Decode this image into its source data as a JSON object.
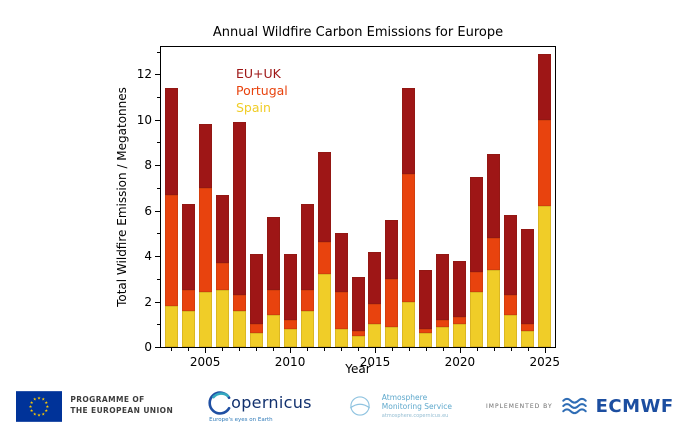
{
  "chart_data": {
    "type": "bar",
    "stacked": true,
    "title": "Annual Wildfire Carbon Emissions for Europe",
    "xlabel": "Year",
    "ylabel": "Total Wildfire Emission / Megatonnes",
    "ylim": [
      0,
      13.2
    ],
    "xlim": [
      2002.4,
      2025.6
    ],
    "yticks": [
      0,
      2,
      4,
      6,
      8,
      10,
      12
    ],
    "yminor": [
      1,
      3,
      5,
      7,
      9,
      11,
      13
    ],
    "xticks": [
      2005,
      2010,
      2015,
      2020,
      2025
    ],
    "years": [
      2003,
      2004,
      2005,
      2006,
      2007,
      2008,
      2009,
      2010,
      2011,
      2012,
      2013,
      2014,
      2015,
      2016,
      2017,
      2018,
      2019,
      2020,
      2021,
      2022,
      2023,
      2024,
      2025
    ],
    "legend": [
      {
        "label": "EU+UK",
        "color": "#9e1616"
      },
      {
        "label": "Portugal",
        "color": "#e8430e"
      },
      {
        "label": "Spain",
        "color": "#f0cd28"
      }
    ],
    "series": [
      {
        "name": "Spain",
        "color": "#f0cd28",
        "values": [
          1.8,
          1.6,
          2.4,
          2.5,
          1.6,
          0.6,
          1.4,
          0.8,
          1.6,
          3.2,
          0.8,
          0.5,
          1.0,
          0.9,
          2.0,
          0.6,
          0.9,
          1.0,
          2.4,
          3.4,
          1.4,
          0.7,
          6.2
        ]
      },
      {
        "name": "Portugal",
        "color": "#e8430e",
        "values": [
          4.9,
          0.9,
          4.6,
          1.2,
          0.7,
          0.4,
          1.1,
          0.4,
          0.9,
          1.4,
          1.6,
          0.2,
          0.9,
          2.1,
          5.6,
          0.2,
          0.3,
          0.3,
          0.9,
          1.4,
          0.9,
          0.3,
          3.8
        ]
      },
      {
        "name": "EU+UK",
        "color": "#9e1616",
        "values": [
          4.7,
          3.8,
          2.8,
          3.0,
          7.6,
          3.1,
          3.2,
          2.9,
          3.8,
          4.0,
          2.6,
          2.4,
          2.3,
          2.6,
          3.8,
          2.6,
          2.9,
          2.5,
          4.2,
          3.7,
          3.5,
          4.2,
          2.9
        ]
      }
    ]
  },
  "footer": {
    "eu_programme_line1": "PROGRAMME OF",
    "eu_programme_line2": "THE EUROPEAN UNION",
    "copernicus_name": "opernicus",
    "copernicus_tagline": "Europe's eyes on Earth",
    "cams_name_line1": "Atmosphere",
    "cams_name_line2": "Monitoring Service",
    "cams_url": "atmosphere.copernicus.eu",
    "implemented_by": "IMPLEMENTED BY",
    "ecmwf": "ECMWF"
  }
}
